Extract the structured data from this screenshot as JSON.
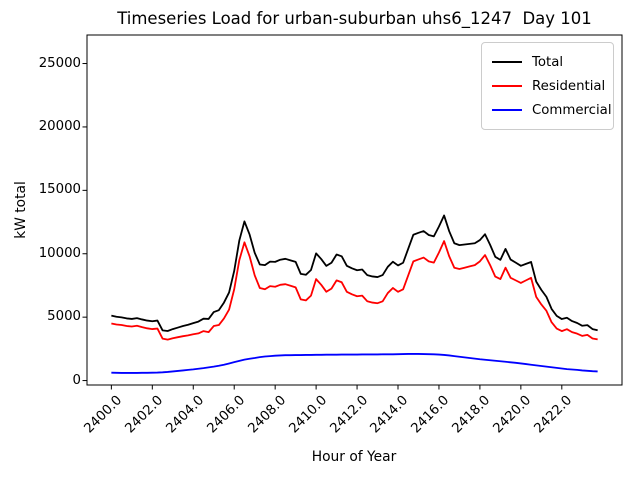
{
  "chart_data": {
    "type": "line",
    "title": "Timeseries Load for urban-suburban uhs6_1247  Day 101",
    "xlabel": "Hour of Year",
    "ylabel": "kW total",
    "xlim": [
      2398.81,
      2424.94
    ],
    "ylim": [
      -350,
      27250
    ],
    "grid": false,
    "x_start": 2400.0,
    "x_step": 0.25,
    "x_ticks": {
      "values": [
        2400,
        2402,
        2404,
        2406,
        2408,
        2410,
        2412,
        2414,
        2416,
        2418,
        2420,
        2422
      ],
      "labels": [
        "2400.0",
        "2402.0",
        "2404.0",
        "2406.0",
        "2408.0",
        "2410.0",
        "2412.0",
        "2414.0",
        "2416.0",
        "2418.0",
        "2420.0",
        "2422.0"
      ]
    },
    "y_ticks": {
      "values": [
        0,
        5000,
        10000,
        15000,
        20000,
        25000
      ],
      "labels": [
        "0",
        "5000",
        "10000",
        "15000",
        "20000",
        "25000"
      ]
    },
    "legend": {
      "position": "upper right"
    },
    "series": [
      {
        "name": "Total",
        "color": "#000000",
        "values": [
          5120,
          5030,
          4980,
          4900,
          4860,
          4920,
          4820,
          4730,
          4680,
          4730,
          3960,
          3910,
          4060,
          4180,
          4300,
          4400,
          4530,
          4650,
          4880,
          4860,
          5400,
          5550,
          6150,
          6950,
          8650,
          11050,
          12550,
          11520,
          10080,
          9150,
          9100,
          9380,
          9360,
          9530,
          9600,
          9480,
          9360,
          8410,
          8340,
          8720,
          10030,
          9580,
          9040,
          9290,
          9940,
          9800,
          9050,
          8850,
          8700,
          8760,
          8310,
          8210,
          8160,
          8320,
          8970,
          9370,
          9080,
          9290,
          10400,
          11500,
          11650,
          11790,
          11480,
          11370,
          12150,
          13020,
          11780,
          10830,
          10680,
          10730,
          10780,
          10830,
          11080,
          11540,
          10700,
          9760,
          9520,
          10380,
          9540,
          9300,
          9050,
          9200,
          9350,
          7800,
          7150,
          6600,
          5650,
          5100,
          4850,
          4950,
          4690,
          4540,
          4320,
          4370,
          4060,
          3970
        ]
      },
      {
        "name": "Residential",
        "color": "#ff0000",
        "values": [
          4500,
          4420,
          4380,
          4300,
          4260,
          4320,
          4210,
          4120,
          4060,
          4100,
          3310,
          3230,
          3340,
          3420,
          3500,
          3560,
          3650,
          3720,
          3900,
          3820,
          4300,
          4380,
          4900,
          5600,
          7200,
          9500,
          10900,
          9800,
          8300,
          7300,
          7200,
          7450,
          7400,
          7550,
          7600,
          7480,
          7350,
          6400,
          6320,
          6700,
          8000,
          7550,
          7000,
          7250,
          7900,
          7750,
          7000,
          6800,
          6650,
          6700,
          6250,
          6150,
          6100,
          6250,
          6900,
          7300,
          7000,
          7200,
          8300,
          9400,
          9550,
          9700,
          9400,
          9300,
          10100,
          11000,
          9800,
          8900,
          8800,
          8900,
          9000,
          9100,
          9400,
          9900,
          9100,
          8200,
          8000,
          8900,
          8100,
          7900,
          7700,
          7900,
          8100,
          6600,
          6000,
          5500,
          4600,
          4100,
          3900,
          4050,
          3820,
          3700,
          3520,
          3600,
          3320,
          3250
        ]
      },
      {
        "name": "Commercial",
        "color": "#0000ff",
        "values": [
          620,
          610,
          600,
          600,
          600,
          600,
          610,
          610,
          620,
          630,
          650,
          680,
          720,
          760,
          800,
          840,
          880,
          930,
          980,
          1040,
          1100,
          1170,
          1250,
          1350,
          1450,
          1550,
          1650,
          1720,
          1780,
          1850,
          1900,
          1930,
          1960,
          1980,
          2000,
          2000,
          2010,
          2010,
          2020,
          2020,
          2030,
          2030,
          2040,
          2040,
          2040,
          2050,
          2050,
          2050,
          2050,
          2060,
          2060,
          2060,
          2060,
          2070,
          2070,
          2070,
          2080,
          2090,
          2100,
          2100,
          2100,
          2090,
          2080,
          2070,
          2050,
          2020,
          1980,
          1930,
          1880,
          1830,
          1780,
          1730,
          1680,
          1640,
          1600,
          1560,
          1520,
          1480,
          1440,
          1400,
          1350,
          1300,
          1250,
          1200,
          1150,
          1100,
          1050,
          1000,
          950,
          900,
          870,
          840,
          800,
          770,
          740,
          720
        ]
      }
    ]
  }
}
